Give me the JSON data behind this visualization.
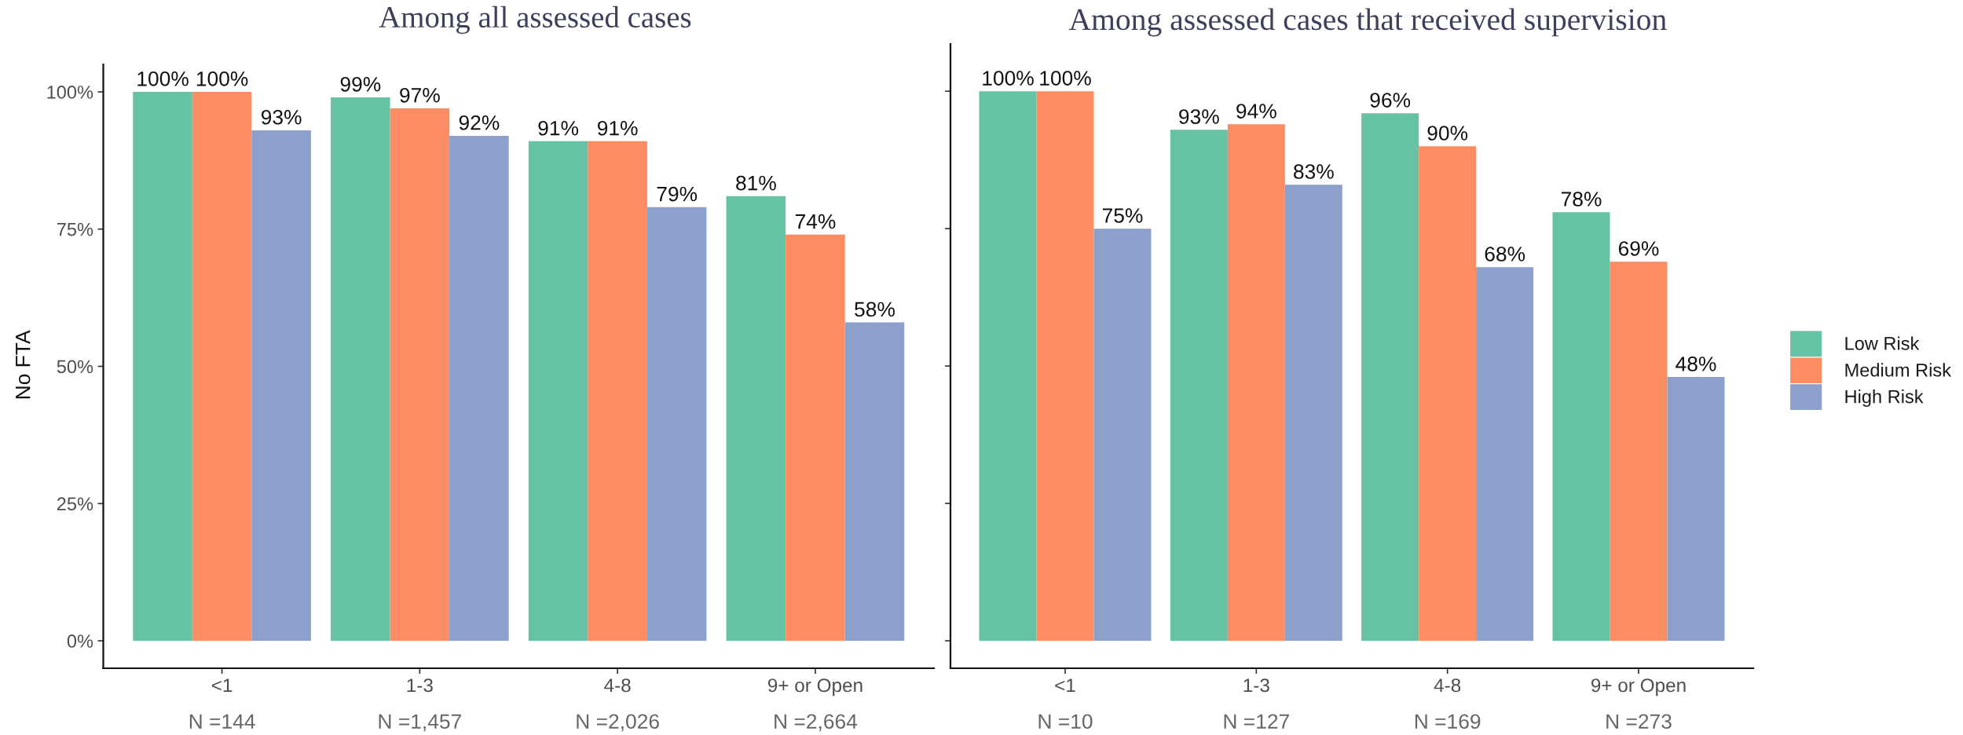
{
  "chart_data": [
    {
      "type": "bar",
      "title": "Among all assessed cases",
      "ylabel": "No FTA",
      "categories": [
        "<1",
        "1-3",
        "4-8",
        "9+ or Open"
      ],
      "series": [
        {
          "name": "Low Risk",
          "color": "#66c2a5",
          "values": [
            100,
            99,
            91,
            81
          ],
          "value_labels": [
            "100%",
            "99%",
            "91%",
            "81%"
          ]
        },
        {
          "name": "Medium Risk",
          "color": "#fc8d62",
          "values": [
            100,
            97,
            91,
            74
          ],
          "value_labels": [
            "100%",
            "97%",
            "91%",
            "74%"
          ]
        },
        {
          "name": "High Risk",
          "color": "#8da0cb",
          "values": [
            93,
            92,
            79,
            58
          ],
          "value_labels": [
            "93%",
            "92%",
            "79%",
            "58%"
          ]
        }
      ],
      "ylim": [
        -5,
        105
      ],
      "yticks": [
        {
          "value": 0,
          "label": "0%"
        },
        {
          "value": 25,
          "label": "25%"
        },
        {
          "value": 50,
          "label": "50%"
        },
        {
          "value": 75,
          "label": "75%"
        },
        {
          "value": 100,
          "label": "100%"
        }
      ],
      "legend": "right",
      "annotations": [
        "N =144",
        "N =1,457",
        "N =2,026",
        "N =2,664"
      ]
    },
    {
      "type": "bar",
      "title": "Among assessed cases that received supervision",
      "categories": [
        "<1",
        "1-3",
        "4-8",
        "9+ or Open"
      ],
      "series": [
        {
          "color": "#66c2a5",
          "values": [
            100,
            93,
            96,
            78
          ],
          "value_labels": [
            "100%",
            "93%",
            "96%",
            "78%"
          ]
        },
        {
          "color": "#fc8d62",
          "values": [
            100,
            94,
            90,
            69
          ],
          "value_labels": [
            "100%",
            "94%",
            "90%",
            "69%"
          ]
        },
        {
          "color": "#8da0cb",
          "values": [
            75,
            83,
            68,
            48
          ],
          "value_labels": [
            "75%",
            "83%",
            "68%",
            "48%"
          ]
        }
      ],
      "ylim": [
        -5,
        108.6
      ],
      "yticks": [
        {
          "value": 0,
          "label": null
        },
        {
          "value": 25,
          "label": null
        },
        {
          "value": 50,
          "label": null
        },
        {
          "value": 75,
          "label": null
        },
        {
          "value": 100,
          "label": null
        }
      ],
      "tick_labels": "x",
      "annotations": [
        "N =10",
        "N =127",
        "N =169",
        "N =273"
      ]
    }
  ]
}
